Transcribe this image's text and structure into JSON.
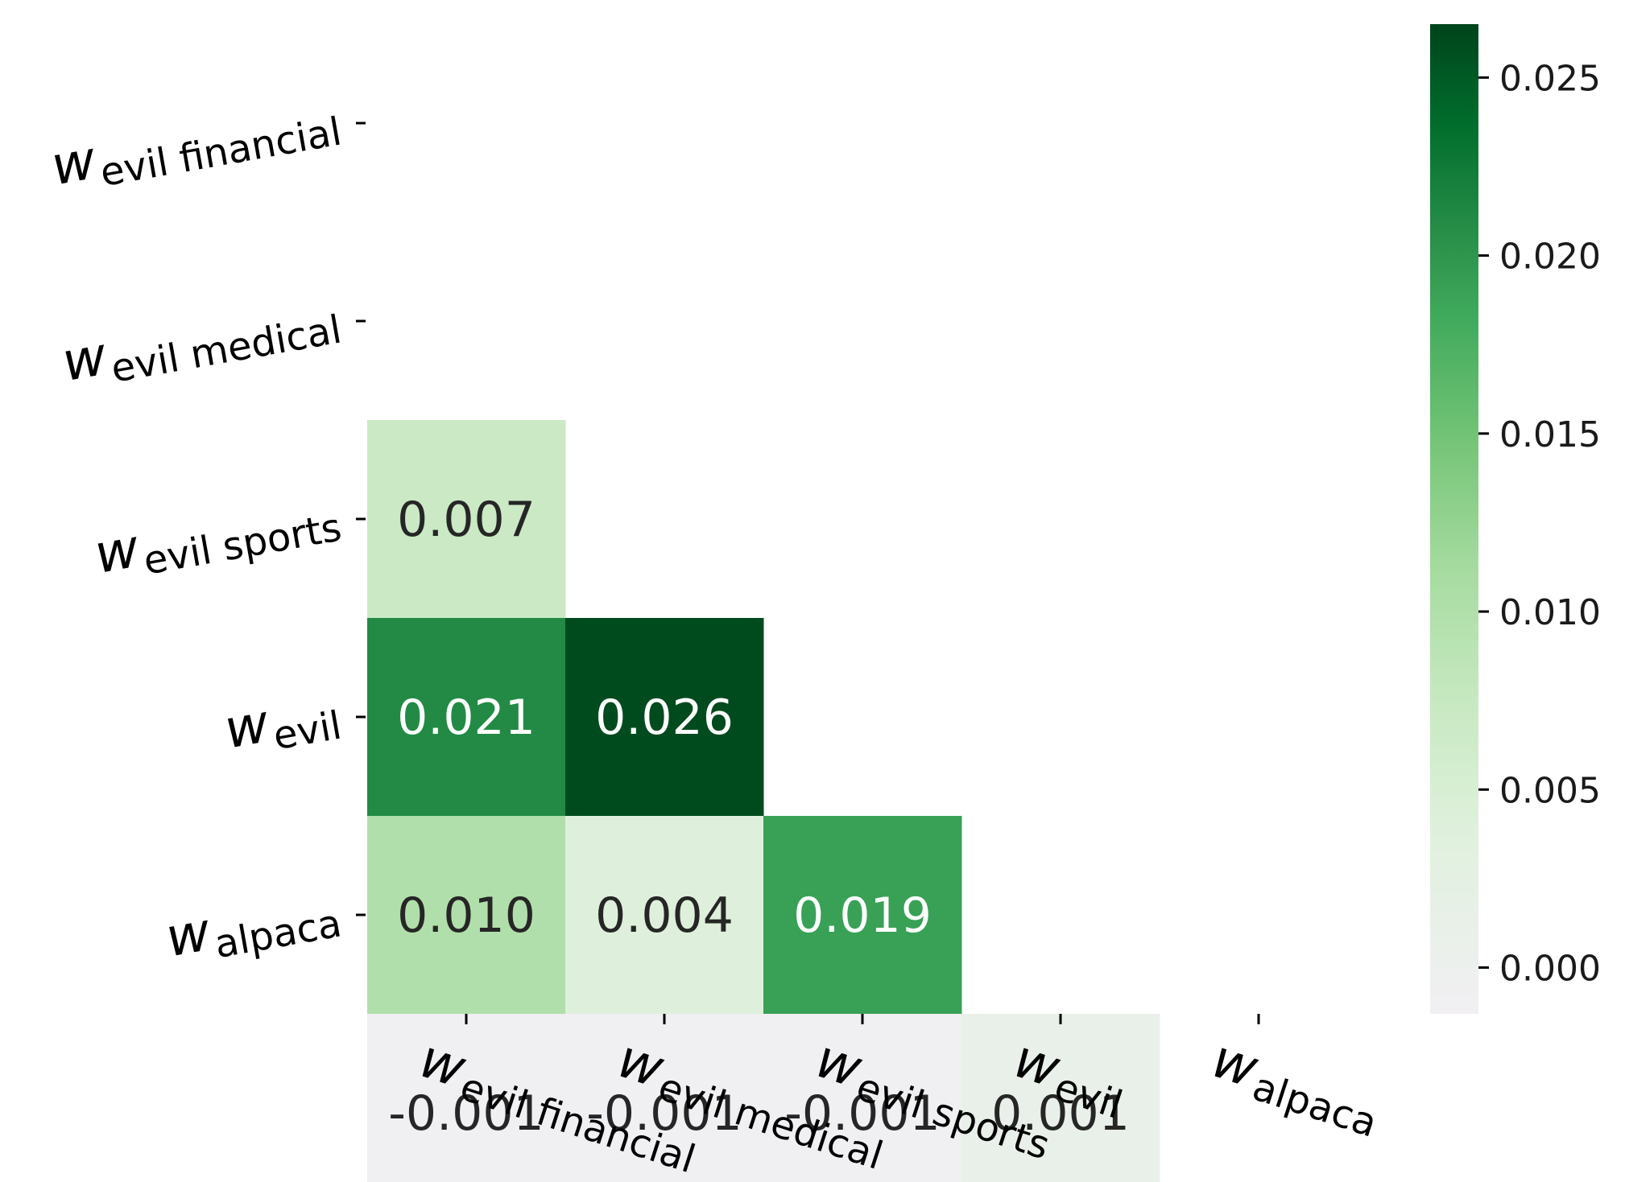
{
  "chart_data": {
    "type": "heatmap",
    "mask": "lower-triangle (upper triangle and diagonal hidden)",
    "rows": [
      {
        "main": "w",
        "sub": "evil financial"
      },
      {
        "main": "w",
        "sub": "evil medical"
      },
      {
        "main": "w",
        "sub": "evil sports"
      },
      {
        "main": "w",
        "sub": "evil"
      },
      {
        "main": "w",
        "sub": "alpaca"
      }
    ],
    "columns": [
      {
        "main": "w",
        "sub": "evil financial"
      },
      {
        "main": "w",
        "sub": "evil medical"
      },
      {
        "main": "w",
        "sub": "evil sports"
      },
      {
        "main": "w",
        "sub": "evil"
      },
      {
        "main": "w",
        "sub": "alpaca"
      }
    ],
    "values": [
      [
        null,
        null,
        null,
        null,
        null
      ],
      [
        0.007,
        null,
        null,
        null,
        null
      ],
      [
        0.021,
        0.026,
        null,
        null,
        null
      ],
      [
        0.01,
        0.004,
        0.019,
        null,
        null
      ],
      [
        -0.001,
        -0.001,
        -0.001,
        0.001,
        null
      ]
    ],
    "labels": [
      [
        null,
        null,
        null,
        null,
        null
      ],
      [
        "0.007",
        null,
        null,
        null,
        null
      ],
      [
        "0.021",
        "0.026",
        null,
        null,
        null
      ],
      [
        "0.010",
        "0.004",
        "0.019",
        null,
        null
      ],
      [
        "-0.001",
        "-0.001",
        "-0.001",
        "0.001",
        null
      ]
    ],
    "colormap": "Greens",
    "colorbar": {
      "range": [
        -0.0013,
        0.0265
      ],
      "ticks": [
        0.0,
        0.005,
        0.01,
        0.015,
        0.02,
        0.025
      ],
      "tick_labels": [
        "0.000",
        "0.005",
        "0.010",
        "0.015",
        "0.020",
        "0.025"
      ],
      "low_color": "#f1eff3",
      "high_color": "#00441b"
    },
    "grid": false
  }
}
